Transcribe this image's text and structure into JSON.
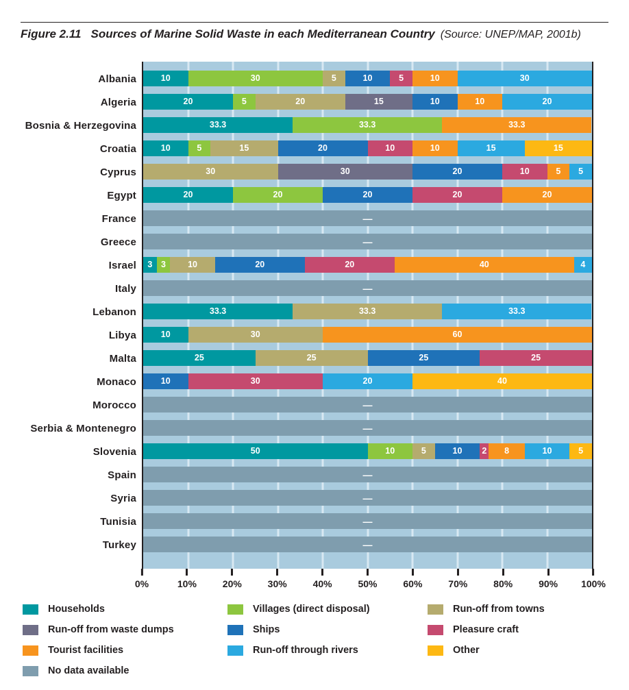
{
  "header": {
    "figure_label": "Figure 2.11",
    "title": "Sources of Marine Solid Waste in each Mediterranean Country",
    "source": "(Source: UNEP/MAP, 2001b)"
  },
  "colors": {
    "households": "#0098A0",
    "villages": "#8DC63F",
    "towns": "#B5AB6E",
    "dumps": "#6F6E87",
    "ships": "#1F72B8",
    "pleasure": "#C54A6F",
    "tourist": "#F7941E",
    "rivers": "#2BA9E0",
    "other": "#FDB813",
    "no_data": "#7F9DAE",
    "plot_background": "#A9CBDE",
    "gridline": "#D8E8F2",
    "text": "#231F20"
  },
  "no_data_dash": "—",
  "legend": [
    {
      "key": "households",
      "label": "Households"
    },
    {
      "key": "villages",
      "label": "Villages (direct disposal)"
    },
    {
      "key": "towns",
      "label": "Run-off from towns"
    },
    {
      "key": "dumps",
      "label": "Run-off from waste dumps"
    },
    {
      "key": "ships",
      "label": "Ships"
    },
    {
      "key": "pleasure",
      "label": "Pleasure craft"
    },
    {
      "key": "tourist",
      "label": "Tourist facilities"
    },
    {
      "key": "rivers",
      "label": "Run-off through rivers"
    },
    {
      "key": "other",
      "label": "Other"
    },
    {
      "key": "no_data",
      "label": "No data available"
    }
  ],
  "chart_data": {
    "type": "bar",
    "orientation": "horizontal",
    "stacked": true,
    "xlim": [
      0,
      100
    ],
    "x_tick_labels": [
      "0%",
      "10%",
      "20%",
      "30%",
      "40%",
      "50%",
      "60%",
      "70%",
      "80%",
      "90%",
      "100%"
    ],
    "gridline_positions": [
      10,
      20,
      30,
      40,
      50,
      60,
      70,
      80,
      90
    ],
    "series_keys": [
      "households",
      "villages",
      "towns",
      "dumps",
      "ships",
      "pleasure",
      "tourist",
      "rivers",
      "other"
    ],
    "categories": [
      "Albania",
      "Algeria",
      "Bosnia & Herzegovina",
      "Croatia",
      "Cyprus",
      "Egypt",
      "France",
      "Greece",
      "Israel",
      "Italy",
      "Lebanon",
      "Libya",
      "Malta",
      "Monaco",
      "Morocco",
      "Serbia & Montenegro",
      "Slovenia",
      "Spain",
      "Syria",
      "Tunisia",
      "Turkey"
    ],
    "rows": [
      {
        "country": "Albania",
        "segments": [
          [
            "households",
            10
          ],
          [
            "villages",
            30
          ],
          [
            "towns",
            5
          ],
          [
            "ships",
            10
          ],
          [
            "pleasure",
            5
          ],
          [
            "tourist",
            10
          ],
          [
            "rivers",
            30
          ]
        ]
      },
      {
        "country": "Algeria",
        "segments": [
          [
            "households",
            20
          ],
          [
            "villages",
            5
          ],
          [
            "towns",
            20
          ],
          [
            "dumps",
            15
          ],
          [
            "ships",
            10
          ],
          [
            "tourist",
            10
          ],
          [
            "rivers",
            20
          ]
        ]
      },
      {
        "country": "Bosnia & Herzegovina",
        "segments": [
          [
            "households",
            33.3
          ],
          [
            "villages",
            33.3
          ],
          [
            "tourist",
            33.3
          ]
        ]
      },
      {
        "country": "Croatia",
        "segments": [
          [
            "households",
            10
          ],
          [
            "villages",
            5
          ],
          [
            "towns",
            15
          ],
          [
            "ships",
            20
          ],
          [
            "pleasure",
            10
          ],
          [
            "tourist",
            10
          ],
          [
            "rivers",
            15
          ],
          [
            "other",
            15
          ]
        ]
      },
      {
        "country": "Cyprus",
        "segments": [
          [
            "towns",
            30
          ],
          [
            "dumps",
            30
          ],
          [
            "ships",
            20
          ],
          [
            "pleasure",
            10
          ],
          [
            "tourist",
            5
          ],
          [
            "rivers",
            5
          ]
        ]
      },
      {
        "country": "Egypt",
        "segments": [
          [
            "households",
            20
          ],
          [
            "villages",
            20
          ],
          [
            "ships",
            20
          ],
          [
            "pleasure",
            20
          ],
          [
            "tourist",
            20
          ]
        ]
      },
      {
        "country": "France",
        "no_data": true
      },
      {
        "country": "Greece",
        "no_data": true
      },
      {
        "country": "Israel",
        "segments": [
          [
            "households",
            3
          ],
          [
            "villages",
            3
          ],
          [
            "towns",
            10
          ],
          [
            "ships",
            20
          ],
          [
            "pleasure",
            20
          ],
          [
            "tourist",
            40
          ],
          [
            "rivers",
            4
          ]
        ]
      },
      {
        "country": "Italy",
        "no_data": true
      },
      {
        "country": "Lebanon",
        "segments": [
          [
            "households",
            33.3
          ],
          [
            "towns",
            33.3
          ],
          [
            "rivers",
            33.3
          ]
        ]
      },
      {
        "country": "Libya",
        "segments": [
          [
            "households",
            10
          ],
          [
            "towns",
            30
          ],
          [
            "tourist",
            60
          ]
        ]
      },
      {
        "country": "Malta",
        "segments": [
          [
            "households",
            25
          ],
          [
            "towns",
            25
          ],
          [
            "ships",
            25
          ],
          [
            "pleasure",
            25
          ]
        ]
      },
      {
        "country": "Monaco",
        "segments": [
          [
            "ships",
            10
          ],
          [
            "pleasure",
            30
          ],
          [
            "rivers",
            20
          ],
          [
            "other",
            40
          ]
        ]
      },
      {
        "country": "Morocco",
        "no_data": true
      },
      {
        "country": "Serbia & Montenegro",
        "no_data": true
      },
      {
        "country": "Slovenia",
        "segments": [
          [
            "households",
            50
          ],
          [
            "villages",
            10
          ],
          [
            "towns",
            5
          ],
          [
            "ships",
            10
          ],
          [
            "pleasure",
            2
          ],
          [
            "tourist",
            8
          ],
          [
            "rivers",
            10
          ],
          [
            "other",
            5
          ]
        ]
      },
      {
        "country": "Spain",
        "no_data": true
      },
      {
        "country": "Syria",
        "no_data": true
      },
      {
        "country": "Tunisia",
        "no_data": true
      },
      {
        "country": "Turkey",
        "no_data": true
      }
    ]
  }
}
